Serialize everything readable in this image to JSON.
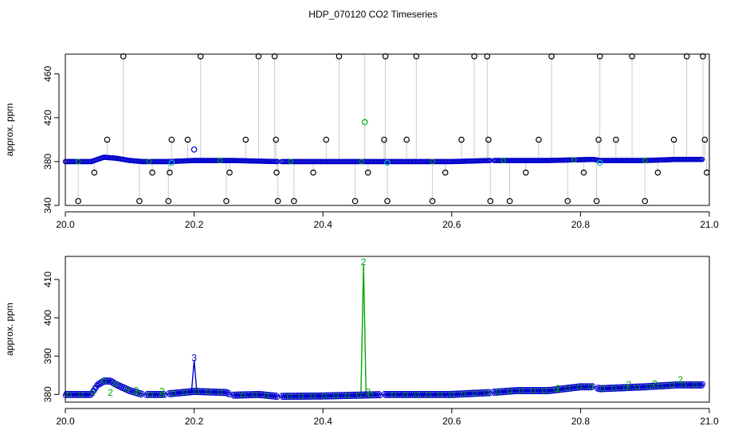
{
  "figure": {
    "title": "HDP_070120  CO2 Timeseries"
  },
  "chart_data": [
    {
      "type": "scatter",
      "title": "",
      "xlabel": "",
      "ylabel": "approx. ppm",
      "xlim": [
        20.0,
        21.0
      ],
      "ylim": [
        340,
        478
      ],
      "xticks": [
        20.0,
        20.2,
        20.4,
        20.6,
        20.8,
        21.0
      ],
      "xtick_labels": [
        "20.0",
        "20.2",
        "20.4",
        "20.6",
        "20.8",
        "21.0"
      ],
      "yticks": [
        340,
        380,
        420,
        460
      ],
      "ytick_labels": [
        "340",
        "380",
        "420",
        "460"
      ],
      "grid": false,
      "legend": "none",
      "colors": {
        "baseline": "#0000cc",
        "outlier": "#000000",
        "flag_green": "#00aa00",
        "flag_cyan": "#00bbbb",
        "spike_line": "#999999"
      },
      "baseline": {
        "x": [
          20.0,
          20.04,
          20.05,
          20.06,
          20.08,
          20.1,
          20.12,
          20.16,
          20.2,
          20.26,
          20.33,
          20.4,
          20.5,
          20.6,
          20.66,
          20.75,
          20.82,
          20.83,
          20.9,
          20.95,
          20.99
        ],
        "y": [
          380,
          380,
          382,
          384,
          383,
          381,
          380,
          380,
          381,
          381,
          380,
          380,
          380,
          380,
          381,
          381,
          382,
          381,
          381,
          382,
          382
        ],
        "gaps": [
          [
            20.33,
            20.335
          ],
          [
            20.66,
            20.665
          ]
        ]
      },
      "outliers": {
        "x": [
          20.02,
          20.045,
          20.065,
          20.09,
          20.115,
          20.135,
          20.16,
          20.162,
          20.165,
          20.19,
          20.21,
          20.25,
          20.255,
          20.28,
          20.3,
          20.325,
          20.327,
          20.328,
          20.33,
          20.355,
          20.385,
          20.405,
          20.425,
          20.45,
          20.47,
          20.495,
          20.497,
          20.5,
          20.53,
          20.545,
          20.57,
          20.59,
          20.615,
          20.635,
          20.655,
          20.657,
          20.66,
          20.69,
          20.715,
          20.735,
          20.755,
          20.78,
          20.805,
          20.825,
          20.828,
          20.83,
          20.855,
          20.88,
          20.9,
          20.92,
          20.945,
          20.965,
          20.99,
          20.993,
          20.996
        ],
        "y": [
          344,
          370,
          400,
          476,
          344,
          370,
          344,
          370,
          400,
          400,
          476,
          344,
          370,
          400,
          476,
          476,
          400,
          370,
          344,
          344,
          370,
          400,
          476,
          344,
          370,
          400,
          476,
          344,
          400,
          476,
          344,
          370,
          400,
          476,
          476,
          400,
          344,
          344,
          370,
          400,
          476,
          344,
          370,
          344,
          400,
          476,
          400,
          476,
          344,
          370,
          400,
          476,
          476,
          400,
          370
        ]
      },
      "flagged": {
        "points": [
          {
            "x": 20.2,
            "y": 391,
            "color": "blue"
          },
          {
            "x": 20.465,
            "y": 416,
            "color": "green"
          },
          {
            "x": 20.165,
            "y": 379,
            "color": "cyan"
          },
          {
            "x": 20.5,
            "y": 379,
            "color": "cyan"
          },
          {
            "x": 20.83,
            "y": 379,
            "color": "cyan"
          }
        ]
      },
      "spike": {
        "x": 20.465,
        "y": 476
      }
    },
    {
      "type": "scatter",
      "title": "",
      "xlabel": "",
      "ylabel": "approx. ppm",
      "xlim": [
        20.0,
        21.0
      ],
      "ylim": [
        378,
        416
      ],
      "xticks": [
        20.0,
        20.2,
        20.4,
        20.6,
        20.8,
        21.0
      ],
      "xtick_labels": [
        "20.0",
        "20.2",
        "20.4",
        "20.6",
        "20.8",
        "21.0"
      ],
      "yticks": [
        380,
        390,
        400,
        410
      ],
      "ytick_labels": [
        "380",
        "390",
        "400",
        "410"
      ],
      "grid": false,
      "legend": "none",
      "colors": {
        "series": "#0000cc",
        "flag2": "#00aa00",
        "flag3": "#0000cc"
      },
      "series": {
        "x": [
          20.0,
          20.02,
          20.04,
          20.05,
          20.06,
          20.07,
          20.08,
          20.1,
          20.12,
          20.15,
          20.2,
          20.25,
          20.26,
          20.3,
          20.33,
          20.4,
          20.45,
          20.5,
          20.55,
          20.6,
          20.66,
          20.7,
          20.75,
          20.8,
          20.82,
          20.83,
          20.9,
          20.95,
          20.99
        ],
        "y": [
          380,
          380,
          380,
          382.5,
          383.5,
          383.5,
          382.5,
          381,
          380,
          380,
          380.8,
          380.5,
          379.8,
          380,
          379.5,
          379.6,
          379.8,
          380,
          380,
          380,
          380.5,
          381,
          381,
          382,
          382,
          381.5,
          382,
          382.5,
          382.5
        ],
        "gaps": [
          [
            20.12,
            20.125
          ],
          [
            20.155,
            20.16
          ],
          [
            20.255,
            20.26
          ],
          [
            20.33,
            20.335
          ],
          [
            20.49,
            20.495
          ],
          [
            20.66,
            20.665
          ],
          [
            20.82,
            20.825
          ]
        ]
      },
      "flags": [
        {
          "label": "2",
          "x": 20.07,
          "y": 380.5
        },
        {
          "label": "2",
          "x": 20.11,
          "y": 381
        },
        {
          "label": "2",
          "x": 20.15,
          "y": 380.8
        },
        {
          "label": "2",
          "x": 20.47,
          "y": 380.6
        },
        {
          "label": "2",
          "x": 20.765,
          "y": 381.5
        },
        {
          "label": "2",
          "x": 20.875,
          "y": 382.6
        },
        {
          "label": "2",
          "x": 20.915,
          "y": 382.8
        },
        {
          "label": "2",
          "x": 20.955,
          "y": 383.8
        },
        {
          "label": "2",
          "x": 20.463,
          "y": 414.5
        },
        {
          "label": "3",
          "x": 20.2,
          "y": 389.5
        }
      ],
      "spikes": [
        {
          "x": 20.2,
          "peak": 389,
          "color": "blue"
        },
        {
          "x": 20.463,
          "peak": 414,
          "color": "green"
        }
      ]
    }
  ]
}
